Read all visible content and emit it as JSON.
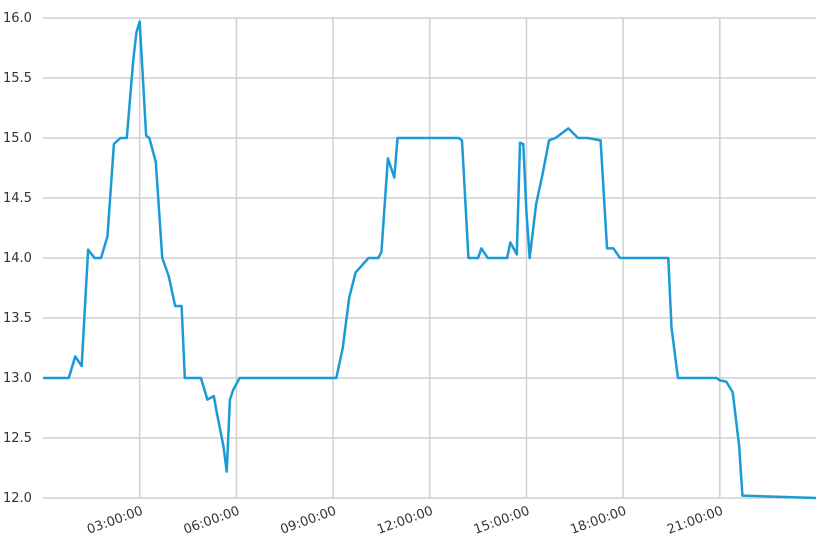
{
  "chart_data": {
    "type": "line",
    "title": "",
    "xlabel": "",
    "ylabel": "",
    "grid": true,
    "ylim": [
      12.0,
      16.0
    ],
    "xlim": [
      "00:00:00",
      "23:59:00"
    ],
    "y_ticks": [
      "12.0",
      "12.5",
      "13.0",
      "13.5",
      "14.0",
      "14.5",
      "15.0",
      "15.5",
      "16.0"
    ],
    "x_ticks": [
      "03:00:00",
      "06:00:00",
      "09:00:00",
      "12:00:00",
      "15:00:00",
      "18:00:00",
      "21:00:00"
    ],
    "colors": {
      "line": "#1a9bd7",
      "grid": "#cfcfcf",
      "text": "#333333"
    },
    "series": [
      {
        "x": [
          "00:00:00",
          "00:48:00",
          "01:00:00",
          "01:12:00",
          "01:24:00",
          "01:36:00",
          "01:48:00",
          "02:00:00",
          "02:12:00",
          "02:24:00",
          "02:36:00",
          "02:48:00",
          "02:54:00",
          "03:00:00",
          "03:12:00",
          "03:18:00",
          "03:30:00",
          "03:42:00",
          "03:54:00",
          "04:06:00",
          "04:18:00",
          "04:24:00",
          "04:36:00",
          "04:54:00",
          "05:06:00",
          "05:18:00",
          "05:24:00",
          "05:36:00",
          "05:42:00",
          "05:48:00",
          "05:54:00",
          "06:06:00",
          "06:18:00",
          "08:30:00",
          "08:42:00",
          "09:00:00",
          "09:06:00",
          "09:18:00",
          "09:30:00",
          "09:42:00",
          "10:06:00",
          "10:18:00",
          "10:24:00",
          "10:30:00",
          "10:42:00",
          "10:54:00",
          "11:00:00",
          "12:54:00",
          "13:00:00",
          "13:12:00",
          "13:30:00",
          "13:36:00",
          "13:48:00",
          "14:24:00",
          "14:30:00",
          "14:42:00",
          "14:48:00",
          "14:54:00",
          "15:00:00",
          "15:06:00",
          "15:18:00",
          "15:30:00",
          "15:42:00",
          "15:54:00",
          "16:18:00",
          "16:36:00",
          "16:54:00",
          "17:18:00",
          "17:30:00",
          "17:42:00",
          "17:54:00",
          "18:00:00",
          "18:18:00",
          "19:12:00",
          "19:24:00",
          "19:30:00",
          "19:42:00",
          "20:48:00",
          "20:54:00",
          "21:00:00",
          "21:12:00",
          "21:24:00",
          "21:36:00",
          "21:42:00",
          "23:59:00"
        ],
        "y": [
          13.0,
          13.0,
          13.18,
          13.1,
          14.07,
          14.0,
          14.0,
          14.18,
          14.95,
          15.0,
          15.0,
          15.65,
          15.88,
          15.97,
          15.02,
          15.0,
          14.8,
          14.0,
          13.85,
          13.6,
          13.6,
          13.0,
          13.0,
          13.0,
          12.82,
          12.85,
          12.7,
          12.43,
          12.22,
          12.82,
          12.9,
          13.0,
          13.0,
          13.0,
          13.0,
          13.0,
          13.0,
          13.25,
          13.67,
          13.88,
          14.0,
          14.0,
          14.0,
          14.05,
          14.83,
          14.67,
          15.0,
          15.0,
          14.98,
          14.0,
          14.0,
          14.08,
          14.0,
          14.0,
          14.13,
          14.03,
          14.96,
          14.95,
          14.38,
          14.0,
          14.45,
          14.7,
          14.98,
          15.0,
          15.08,
          15.0,
          15.0,
          14.98,
          14.08,
          14.08,
          14.0,
          14.0,
          14.0,
          14.0,
          14.0,
          13.42,
          13.0,
          13.0,
          13.0,
          12.98,
          12.97,
          12.88,
          12.43,
          12.02,
          12.0
        ]
      }
    ]
  }
}
